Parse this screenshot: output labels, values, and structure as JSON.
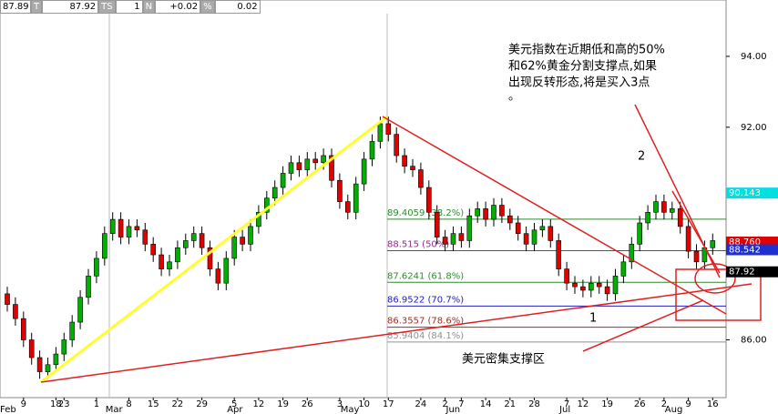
{
  "header": {
    "last": "87.89",
    "last_tag": "T",
    "bid": "87.92",
    "bid_tag": "TS",
    "size": "1",
    "size_tag": "N",
    "change": "+0.02",
    "change_tag": "%",
    "change_pct": "0.02"
  },
  "chart_data": {
    "type": "candlestick",
    "days": [
      null,
      null,
      "9",
      null,
      null,
      null,
      "18",
      "23",
      null,
      null,
      null,
      "1",
      null,
      null,
      null,
      "8",
      null,
      null,
      "15",
      null,
      null,
      "22",
      null,
      null,
      "29",
      null,
      null,
      null,
      "5",
      null,
      null,
      "12",
      null,
      null,
      "19",
      null,
      null,
      "26",
      null,
      null,
      null,
      "3",
      null,
      null,
      "10",
      null,
      null,
      "17",
      null,
      null,
      null,
      "24",
      null,
      null,
      "2",
      null,
      "7",
      null,
      null,
      "14",
      null,
      null,
      "21",
      null,
      null,
      "28",
      null,
      null,
      null,
      "7",
      null,
      "12",
      null,
      null,
      "19",
      null,
      null,
      null,
      "26",
      null,
      null,
      "2",
      null,
      null,
      "9",
      null,
      null,
      "16"
    ],
    "months": [
      "Feb",
      null,
      null,
      null,
      null,
      null,
      null,
      null,
      null,
      null,
      null,
      null,
      null,
      "Mar",
      null,
      null,
      null,
      null,
      null,
      null,
      null,
      null,
      null,
      null,
      null,
      null,
      null,
      null,
      "Apr",
      null,
      null,
      null,
      null,
      null,
      null,
      null,
      null,
      null,
      null,
      null,
      null,
      null,
      "May",
      null,
      null,
      null,
      null,
      null,
      null,
      null,
      null,
      null,
      null,
      null,
      null,
      "Jun",
      null,
      null,
      null,
      null,
      null,
      null,
      null,
      null,
      null,
      null,
      null,
      null,
      null,
      "Jul",
      null,
      null,
      null,
      null,
      null,
      null,
      null,
      null,
      null,
      null,
      null,
      null,
      "Aug",
      null,
      null,
      null,
      null,
      null
    ],
    "open": [
      87.3,
      87.0,
      86.6,
      86.0,
      85.5,
      85.1,
      85.3,
      85.6,
      86.0,
      86.5,
      87.2,
      87.8,
      88.3,
      89.0,
      89.4,
      88.9,
      89.2,
      89.1,
      88.7,
      88.4,
      88.0,
      88.2,
      88.6,
      88.8,
      89.0,
      88.6,
      88.0,
      87.6,
      88.3,
      88.9,
      88.7,
      89.2,
      89.6,
      90.0,
      90.3,
      90.7,
      91.0,
      90.8,
      91.1,
      91.0,
      91.2,
      90.5,
      89.9,
      89.6,
      90.4,
      91.1,
      91.6,
      92.1,
      91.8,
      91.2,
      90.9,
      90.8,
      90.3,
      89.6,
      88.9,
      88.7,
      89.0,
      88.8,
      89.5,
      89.7,
      89.4,
      89.8,
      89.5,
      89.3,
      89.0,
      88.7,
      89.1,
      89.2,
      88.8,
      88.0,
      87.6,
      87.5,
      87.4,
      87.6,
      87.5,
      87.3,
      87.8,
      88.2,
      88.7,
      89.3,
      89.6,
      89.9,
      89.6,
      89.7,
      89.2,
      88.5,
      88.2,
      88.6
    ],
    "high": [
      87.5,
      87.2,
      86.8,
      86.2,
      85.7,
      85.5,
      85.8,
      86.2,
      86.7,
      87.4,
      88.0,
      88.5,
      89.2,
      89.6,
      89.6,
      89.4,
      89.4,
      89.3,
      88.9,
      88.6,
      88.4,
      88.8,
      89.0,
      89.2,
      89.2,
      88.8,
      88.2,
      88.5,
      89.1,
      89.1,
      89.4,
      89.8,
      90.2,
      90.5,
      90.9,
      91.2,
      91.2,
      91.3,
      91.3,
      91.4,
      91.4,
      90.7,
      90.1,
      90.6,
      91.3,
      91.8,
      92.3,
      92.3,
      92.0,
      91.4,
      91.1,
      91.0,
      90.5,
      89.8,
      89.1,
      89.2,
      89.2,
      89.7,
      89.9,
      89.9,
      90.0,
      90.0,
      89.7,
      89.5,
      89.2,
      89.3,
      89.4,
      89.4,
      89.0,
      88.2,
      87.8,
      87.7,
      87.8,
      87.8,
      87.7,
      88.0,
      88.4,
      88.9,
      89.5,
      89.8,
      90.1,
      90.1,
      89.9,
      89.9,
      89.4,
      88.7,
      88.8,
      89.0
    ],
    "low": [
      86.8,
      86.4,
      85.8,
      85.3,
      84.9,
      84.9,
      85.1,
      85.4,
      85.8,
      86.3,
      87.0,
      87.6,
      88.1,
      88.8,
      88.7,
      88.7,
      88.9,
      88.5,
      88.2,
      87.8,
      87.8,
      88.0,
      88.4,
      88.6,
      88.4,
      87.8,
      87.4,
      87.4,
      88.1,
      88.5,
      88.5,
      89.0,
      89.4,
      89.8,
      90.1,
      90.5,
      90.6,
      90.6,
      90.8,
      90.8,
      90.3,
      89.7,
      89.4,
      89.4,
      90.2,
      90.9,
      91.4,
      91.6,
      91.0,
      90.7,
      90.6,
      90.1,
      89.4,
      88.7,
      88.5,
      88.5,
      88.6,
      88.6,
      89.3,
      89.2,
      89.2,
      89.3,
      89.1,
      88.8,
      88.5,
      88.5,
      88.9,
      88.6,
      87.8,
      87.4,
      87.3,
      87.2,
      87.2,
      87.3,
      87.1,
      87.1,
      87.6,
      88.0,
      88.5,
      89.1,
      89.4,
      89.4,
      89.4,
      89.0,
      88.3,
      88.0,
      88.0,
      88.4
    ],
    "close": [
      87.0,
      86.6,
      86.0,
      85.5,
      85.1,
      85.3,
      85.6,
      86.0,
      86.5,
      87.2,
      87.8,
      88.3,
      89.0,
      89.4,
      88.9,
      89.2,
      89.1,
      88.7,
      88.4,
      88.0,
      88.2,
      88.6,
      88.8,
      89.0,
      88.6,
      88.0,
      87.6,
      88.3,
      88.9,
      88.7,
      89.2,
      89.6,
      90.0,
      90.3,
      90.7,
      91.0,
      90.8,
      91.1,
      91.0,
      91.2,
      90.5,
      89.9,
      89.6,
      90.4,
      91.1,
      91.6,
      92.1,
      91.8,
      91.2,
      90.9,
      90.8,
      90.3,
      89.6,
      88.9,
      88.7,
      89.0,
      88.8,
      89.5,
      89.7,
      89.4,
      89.8,
      89.5,
      89.3,
      89.0,
      88.7,
      89.1,
      89.2,
      88.8,
      88.0,
      87.6,
      87.5,
      87.4,
      87.6,
      87.5,
      87.3,
      87.8,
      88.2,
      88.7,
      89.3,
      89.6,
      89.9,
      89.6,
      89.7,
      89.2,
      88.5,
      88.2,
      88.6,
      88.8
    ],
    "up_color": "#00b000",
    "down_color": "#e00000",
    "ylim": [
      84.37,
      95.59
    ],
    "yticks": [
      {
        "value": 86,
        "label": "86.00"
      },
      {
        "value": 92,
        "label": "92.00"
      },
      {
        "value": 94,
        "label": "94.00"
      }
    ],
    "fib_levels": [
      {
        "value": 89.4059,
        "label": "89.4059 (38.2%)",
        "color": "#2e8b2e"
      },
      {
        "value": 88.515,
        "label": "88.515 (50%)",
        "color": "#8b2e8b"
      },
      {
        "value": 87.6241,
        "label": "87.6241 (61.8%)",
        "color": "#2e8b2e"
      },
      {
        "value": 86.9522,
        "label": "86.9522 (70.7%)",
        "color": "#2020c0"
      },
      {
        "value": 86.3557,
        "label": "86.3557 (78.6%)",
        "color": "#a03020"
      },
      {
        "value": 85.9404,
        "label": "85.9404 (84.1%)",
        "color": "#909090"
      }
    ],
    "price_tags": [
      {
        "value": 90.143,
        "label": "90.143",
        "color": "#00e0e0"
      },
      {
        "value": 88.76,
        "label": "88.760",
        "color": "#e00000"
      },
      {
        "value": 88.542,
        "label": "88.542",
        "color": "#2030d0"
      },
      {
        "value": 87.92,
        "label": "87.92",
        "color": "#000000"
      }
    ],
    "annotations": {
      "note_lines": [
        "美元指数在近期低和高的50%",
        "和62%黄金分割支撑点,如果",
        "出现反转形态,将是买入3点",
        "。"
      ],
      "wave_2": "2",
      "wave_1": "1",
      "zone": "美元密集支撑区"
    }
  }
}
